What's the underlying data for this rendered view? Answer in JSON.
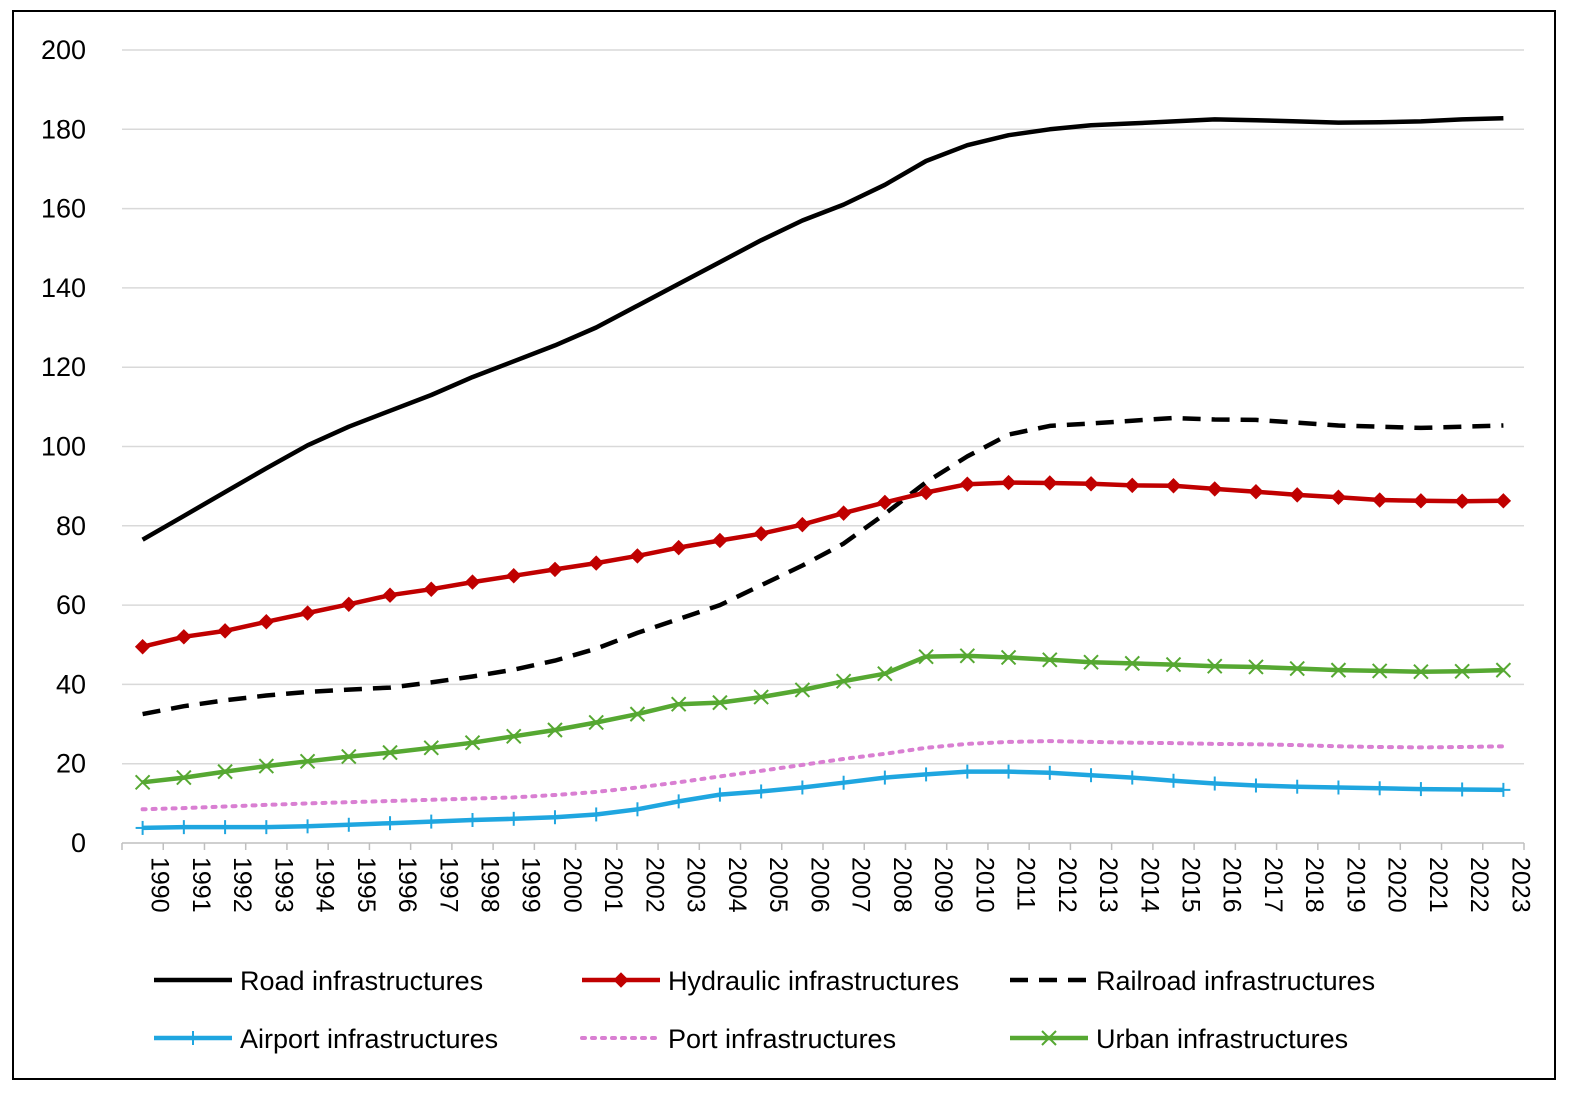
{
  "chart_data": {
    "type": "line",
    "title": "",
    "xlabel": "",
    "ylabel": "",
    "ylim": [
      0,
      200
    ],
    "yticks": [
      0,
      20,
      40,
      60,
      80,
      100,
      120,
      140,
      160,
      180,
      200
    ],
    "grid": "horizontal",
    "legend": "bottom",
    "x": [
      "1990",
      "1991",
      "1992",
      "1993",
      "1994",
      "1995",
      "1996",
      "1997",
      "1998",
      "1999",
      "2000",
      "2001",
      "2002",
      "2003",
      "2004",
      "2005",
      "2006",
      "2007",
      "2008",
      "2009",
      "2010",
      "2011",
      "2012",
      "2013",
      "2014",
      "2015",
      "2016",
      "2017",
      "2018",
      "2019",
      "2020",
      "2021",
      "2022",
      "2023"
    ],
    "series": [
      {
        "name": "Road infrastructures",
        "color": "#000000",
        "dash": "solid",
        "marker": "none",
        "values": [
          76.5,
          82.5,
          88.5,
          94.5,
          100.3,
          105,
          109,
          113,
          117.5,
          121.5,
          125.5,
          130,
          135.5,
          141,
          146.5,
          152,
          157,
          161,
          166,
          172,
          176,
          178.5,
          180,
          181,
          181.5,
          182,
          182.5,
          182.3,
          182,
          181.7,
          181.8,
          182,
          182.5,
          182.8
        ]
      },
      {
        "name": "Hydraulic infrastructures",
        "color": "#c00000",
        "dash": "solid",
        "marker": "diamond",
        "values": [
          49.5,
          52,
          53.5,
          55.8,
          58,
          60.2,
          62.5,
          64,
          65.8,
          67.4,
          69,
          70.6,
          72.4,
          74.5,
          76.3,
          78,
          80.3,
          83.2,
          85.9,
          88.4,
          90.5,
          90.9,
          90.8,
          90.6,
          90.2,
          90.1,
          89.3,
          88.6,
          87.8,
          87.2,
          86.5,
          86.3,
          86.2,
          86.3
        ]
      },
      {
        "name": "Railroad infrastructures",
        "color": "#000000",
        "dash": "dash",
        "marker": "none",
        "values": [
          32.5,
          34.5,
          36,
          37.2,
          38.1,
          38.7,
          39.2,
          40.5,
          42,
          43.7,
          46,
          49,
          53,
          56.5,
          60,
          65,
          70,
          75.5,
          83,
          91,
          97.5,
          103,
          105.2,
          105.8,
          106.5,
          107.2,
          106.8,
          106.7,
          106,
          105.3,
          105,
          104.7,
          105,
          105.3
        ]
      },
      {
        "name": "Airport infrastructures",
        "color": "#1fa6e0",
        "dash": "solid",
        "marker": "plus",
        "values": [
          3.8,
          4,
          4,
          4,
          4.2,
          4.6,
          5,
          5.4,
          5.8,
          6.1,
          6.5,
          7.2,
          8.5,
          10.5,
          12.2,
          13,
          14,
          15.2,
          16.5,
          17.3,
          18,
          18,
          17.7,
          17.1,
          16.5,
          15.7,
          15,
          14.5,
          14.2,
          14,
          13.8,
          13.6,
          13.5,
          13.4
        ]
      },
      {
        "name": "Port infrastructures",
        "color": "#d97fd2",
        "dash": "dot",
        "marker": "none",
        "values": [
          8.5,
          8.8,
          9.2,
          9.6,
          10,
          10.3,
          10.6,
          10.9,
          11.2,
          11.5,
          12.1,
          12.9,
          14,
          15.3,
          16.8,
          18.2,
          19.7,
          21.2,
          22.5,
          24,
          25,
          25.5,
          25.7,
          25.5,
          25.3,
          25.2,
          25,
          24.9,
          24.7,
          24.4,
          24.2,
          24.1,
          24.2,
          24.4
        ]
      },
      {
        "name": "Urban infrastructures",
        "color": "#56a832",
        "dash": "solid",
        "marker": "x",
        "values": [
          15.3,
          16.5,
          18,
          19.4,
          20.6,
          21.8,
          22.8,
          24,
          25.3,
          26.9,
          28.5,
          30.4,
          32.5,
          35,
          35.4,
          36.8,
          38.6,
          40.8,
          42.7,
          47,
          47.2,
          46.8,
          46.2,
          45.6,
          45.3,
          45,
          44.6,
          44.4,
          44,
          43.6,
          43.4,
          43.2,
          43.3,
          43.6
        ]
      }
    ]
  }
}
